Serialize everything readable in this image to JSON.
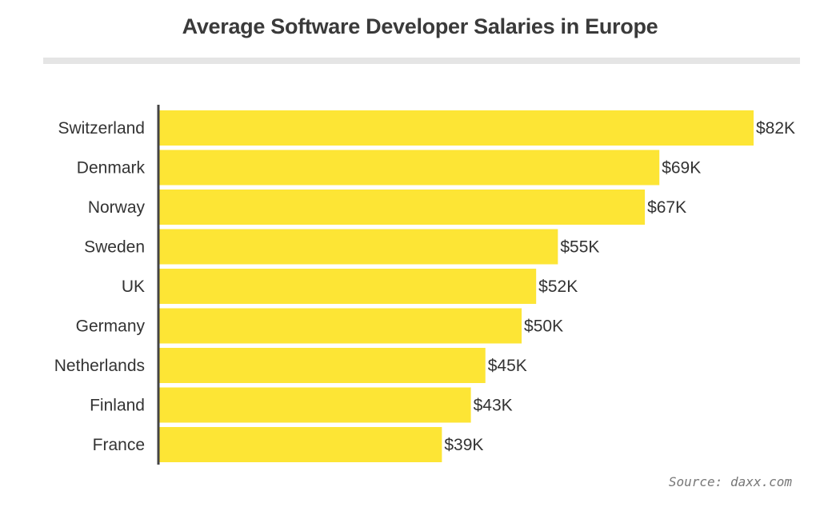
{
  "chart_data": {
    "type": "bar",
    "orientation": "horizontal",
    "title": "Average Software Developer Salaries in Europe",
    "categories": [
      "Switzerland",
      "Denmark",
      "Norway",
      "Sweden",
      "UK",
      "Germany",
      "Netherlands",
      "Finland",
      "France"
    ],
    "values": [
      82,
      69,
      67,
      55,
      52,
      50,
      45,
      43,
      39
    ],
    "data_labels": [
      "$82K",
      "$69K",
      "$67K",
      "$55K",
      "$52K",
      "$50K",
      "$45K",
      "$43K",
      "$39K"
    ],
    "xlim": [
      0,
      82
    ],
    "grid": false,
    "bar_color": "#fde535",
    "axis_color": "#444444"
  },
  "source": "Source: daxx.com"
}
